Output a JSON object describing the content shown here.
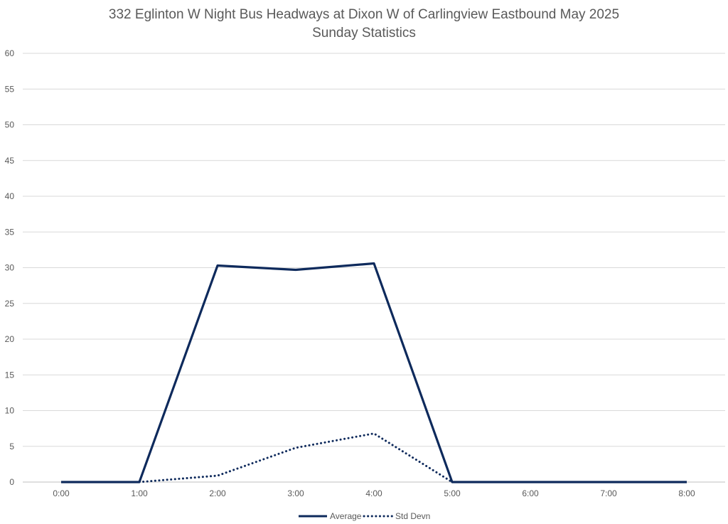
{
  "chart_data": {
    "type": "line",
    "title": "332 Eglinton W Night Bus Headways at Dixon W of Carlingview Eastbound May 2025",
    "subtitle": "Sunday Statistics",
    "xlabel": "",
    "ylabel": "",
    "x": [
      "0:00",
      "1:00",
      "2:00",
      "3:00",
      "4:00",
      "5:00",
      "6:00",
      "7:00",
      "8:00"
    ],
    "ylim": [
      0,
      60
    ],
    "yticks": [
      0,
      5,
      10,
      15,
      20,
      25,
      30,
      35,
      40,
      45,
      50,
      55,
      60
    ],
    "grid": true,
    "legend_position": "bottom",
    "series": [
      {
        "name": "Average",
        "style": "solid",
        "color": "#0e2a5c",
        "values": [
          0,
          0,
          30.3,
          29.7,
          30.6,
          0,
          0,
          0,
          0
        ]
      },
      {
        "name": "Std Devn",
        "style": "dotted",
        "color": "#0e2a5c",
        "values": [
          null,
          0,
          0.9,
          4.8,
          6.8,
          0,
          null,
          null,
          null
        ]
      }
    ]
  }
}
